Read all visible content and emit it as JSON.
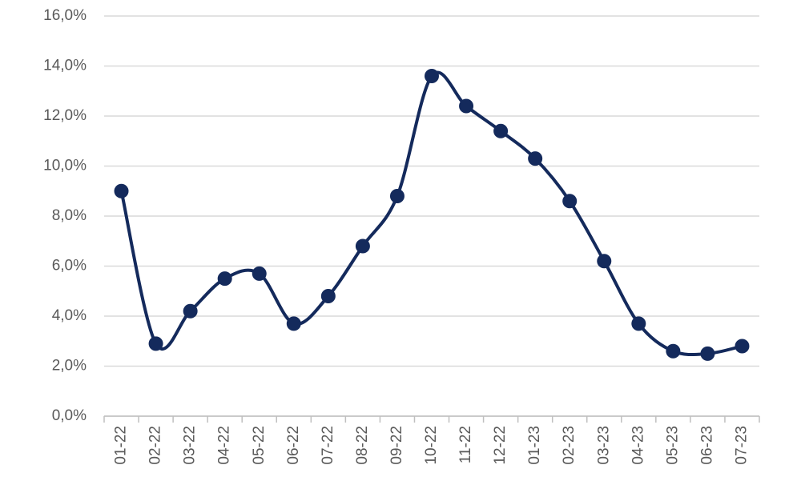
{
  "chart_data": {
    "type": "line",
    "smooth": true,
    "grid": true,
    "color": "#142a5c",
    "categories": [
      "01-22",
      "02-22",
      "03-22",
      "04-22",
      "05-22",
      "06-22",
      "07-22",
      "08-22",
      "09-22",
      "10-22",
      "11-22",
      "12-22",
      "01-23",
      "02-23",
      "03-23",
      "04-23",
      "05-23",
      "06-23",
      "07-23"
    ],
    "values": [
      9.0,
      2.9,
      4.2,
      5.5,
      5.7,
      3.7,
      4.8,
      6.8,
      8.8,
      13.6,
      12.4,
      11.4,
      10.3,
      8.6,
      6.2,
      3.7,
      2.6,
      2.5,
      2.8
    ],
    "ylim": [
      0,
      16
    ],
    "yticks": [
      {
        "value": 0,
        "label": "0,0%"
      },
      {
        "value": 2,
        "label": "2,0%"
      },
      {
        "value": 4,
        "label": "4,0%"
      },
      {
        "value": 6,
        "label": "6,0%"
      },
      {
        "value": 8,
        "label": "8,0%"
      },
      {
        "value": 10,
        "label": "10,0%"
      },
      {
        "value": 12,
        "label": "12,0%"
      },
      {
        "value": 14,
        "label": "14,0%"
      },
      {
        "value": 16,
        "label": "16,0%"
      }
    ]
  }
}
